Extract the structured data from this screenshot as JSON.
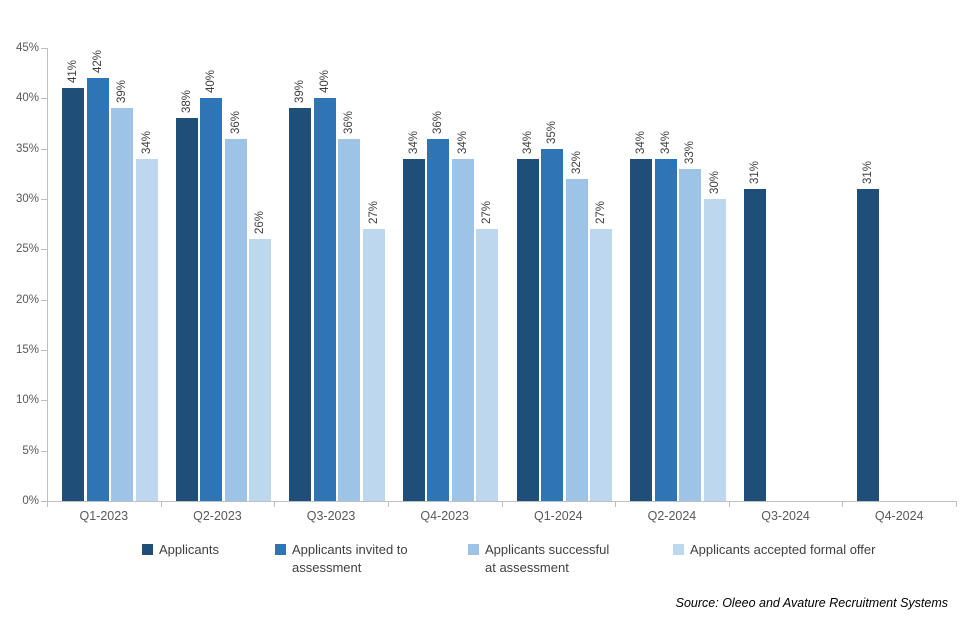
{
  "source_note": "Source: Oleeo and Avature Recruitment Systems",
  "chart_data": {
    "type": "bar",
    "title": "",
    "xlabel": "",
    "ylabel": "",
    "categories": [
      "Q1-2023",
      "Q2-2023",
      "Q3-2023",
      "Q4-2023",
      "Q1-2024",
      "Q2-2024",
      "Q3-2024",
      "Q4-2024"
    ],
    "series": [
      {
        "name": "Applicants",
        "color": "#1F4E79",
        "values": [
          41,
          38,
          39,
          34,
          34,
          34,
          31,
          31
        ]
      },
      {
        "name": "Applicants invited to assessment",
        "color": "#2E75B6",
        "values": [
          42,
          40,
          40,
          36,
          35,
          34,
          null,
          null
        ]
      },
      {
        "name": "Applicants successful at assessment",
        "color": "#9DC3E6",
        "values": [
          39,
          36,
          36,
          34,
          32,
          33,
          null,
          null
        ]
      },
      {
        "name": "Applicants accepted formal offer",
        "color": "#BDD7EE",
        "values": [
          34,
          26,
          27,
          27,
          27,
          30,
          null,
          null
        ]
      }
    ],
    "ylim": [
      0,
      45
    ],
    "ytick_step": 5,
    "ytick_suffix": "%",
    "data_label_suffix": "%",
    "data_label_rotation": -90,
    "grid": false,
    "legend_position": "bottom",
    "axis_color": "#BFBFBF",
    "data_label_color": "#404040",
    "tick_label_color": "#595959"
  }
}
